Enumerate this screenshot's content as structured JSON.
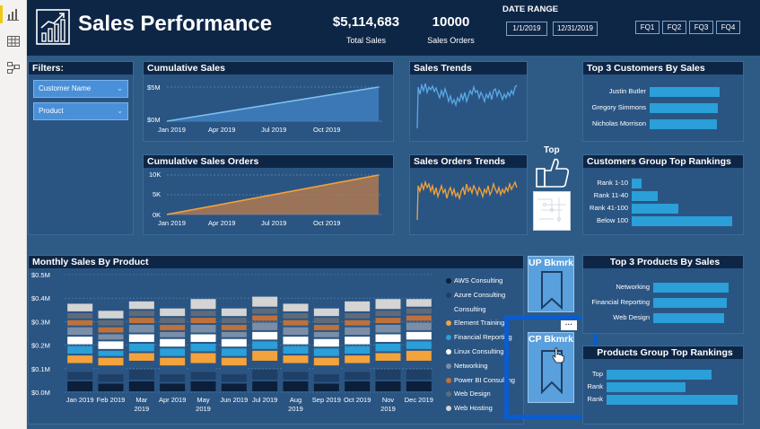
{
  "header": {
    "title": "Sales Performance",
    "kpi_sales_value": "$5,114,683",
    "kpi_sales_label": "Total Sales",
    "kpi_orders_value": "10000",
    "kpi_orders_label": "Sales Orders",
    "date_range_label": "DATE RANGE",
    "date_start": "1/1/2019",
    "date_end": "12/31/2019",
    "quarters": [
      "FQ1",
      "FQ2",
      "FQ3",
      "FQ4"
    ]
  },
  "filters": {
    "title": "Filters:",
    "slicers": [
      "Customer Name",
      "Product"
    ]
  },
  "cumulative_sales": {
    "title": "Cumulative Sales",
    "y_ticks": [
      "$5M",
      "$0M"
    ],
    "x_ticks": [
      "Jan 2019",
      "Apr 2019",
      "Jul 2019",
      "Oct 2019"
    ]
  },
  "cumulative_orders": {
    "title": "Cumulative Sales Orders",
    "y_ticks": [
      "10K",
      "5K",
      "0K"
    ],
    "x_ticks": [
      "Jan 2019",
      "Apr 2019",
      "Jul 2019",
      "Oct 2019"
    ]
  },
  "sales_trends": {
    "title": "Sales Trends"
  },
  "orders_trends": {
    "title": "Sales Orders Trends"
  },
  "top_toggle": {
    "label": "Top"
  },
  "top_customers": {
    "title": "Top 3 Customers By Sales",
    "items": [
      {
        "label": "Justin Butler",
        "value": 1.0
      },
      {
        "label": "Gregory Simmons",
        "value": 0.97
      },
      {
        "label": "Nicholas Morrison",
        "value": 0.96
      }
    ]
  },
  "customer_groups": {
    "title": "Customers Group Top Rankings",
    "items": [
      {
        "label": "Rank 1-10",
        "value": 0.1
      },
      {
        "label": "Rank 11-40",
        "value": 0.26
      },
      {
        "label": "Rank 41-100",
        "value": 0.46
      },
      {
        "label": "Below 100",
        "value": 1.0
      }
    ]
  },
  "monthly_sales": {
    "title": "Monthly Sales By Product",
    "y_ticks": [
      "$0.5M",
      "$0.4M",
      "$0.3M",
      "$0.2M",
      "$0.1M",
      "$0.0M"
    ],
    "months": [
      "Jan 2019",
      "Feb 2019",
      "Mar\n2019",
      "Apr 2019",
      "May\n2019",
      "Jun 2019",
      "Jul 2019",
      "Aug\n2019",
      "Sep 2019",
      "Oct 2019",
      "Nov\n2019",
      "Dec 2019"
    ],
    "legend": [
      {
        "name": "AWS Consulting",
        "color": "#0b1f3a"
      },
      {
        "name": "Azure Consulting",
        "color": "#1f3f66"
      },
      {
        "name": "Consulting",
        "color": "#2a5583"
      },
      {
        "name": "Element Training",
        "color": "#f4a23b"
      },
      {
        "name": "Financial Reporting",
        "color": "#2a9fd8"
      },
      {
        "name": "Linux Consulting",
        "color": "#ffffff"
      },
      {
        "name": "Networking",
        "color": "#7a8ea8"
      },
      {
        "name": "Power BI Consulting",
        "color": "#c0713a"
      },
      {
        "name": "Web Design",
        "color": "#5f6b7a"
      },
      {
        "name": "Web Hosting",
        "color": "#d4d4d4"
      }
    ]
  },
  "chart_data": {
    "type": "bar",
    "stacked": true,
    "title": "Monthly Sales By Product",
    "categories": [
      "Jan 2019",
      "Feb 2019",
      "Mar 2019",
      "Apr 2019",
      "May 2019",
      "Jun 2019",
      "Jul 2019",
      "Aug 2019",
      "Sep 2019",
      "Oct 2019",
      "Nov 2019",
      "Dec 2019"
    ],
    "ylim": [
      0,
      0.5
    ],
    "series": [
      {
        "name": "AWS Consulting",
        "values": [
          0.05,
          0.04,
          0.05,
          0.04,
          0.05,
          0.04,
          0.05,
          0.05,
          0.04,
          0.05,
          0.05,
          0.05
        ]
      },
      {
        "name": "Azure Consulting",
        "values": [
          0.04,
          0.04,
          0.05,
          0.04,
          0.04,
          0.04,
          0.05,
          0.04,
          0.04,
          0.04,
          0.05,
          0.05
        ]
      },
      {
        "name": "Consulting",
        "values": [
          0.03,
          0.03,
          0.03,
          0.03,
          0.03,
          0.03,
          0.03,
          0.03,
          0.03,
          0.03,
          0.03,
          0.03
        ]
      },
      {
        "name": "Element Training",
        "values": [
          0.04,
          0.04,
          0.04,
          0.04,
          0.05,
          0.04,
          0.05,
          0.04,
          0.04,
          0.04,
          0.04,
          0.05
        ]
      },
      {
        "name": "Financial Reporting",
        "values": [
          0.04,
          0.03,
          0.04,
          0.04,
          0.04,
          0.04,
          0.04,
          0.04,
          0.04,
          0.04,
          0.04,
          0.04
        ]
      },
      {
        "name": "Linux Consulting",
        "values": [
          0.04,
          0.04,
          0.04,
          0.04,
          0.04,
          0.04,
          0.04,
          0.04,
          0.04,
          0.04,
          0.04,
          0.04
        ]
      },
      {
        "name": "Networking",
        "values": [
          0.04,
          0.03,
          0.04,
          0.03,
          0.04,
          0.03,
          0.04,
          0.04,
          0.03,
          0.04,
          0.04,
          0.04
        ]
      },
      {
        "name": "Power BI Consulting",
        "values": [
          0.03,
          0.03,
          0.03,
          0.03,
          0.03,
          0.03,
          0.03,
          0.03,
          0.03,
          0.03,
          0.03,
          0.03
        ]
      },
      {
        "name": "Web Design",
        "values": [
          0.03,
          0.03,
          0.03,
          0.03,
          0.03,
          0.03,
          0.03,
          0.03,
          0.03,
          0.03,
          0.03,
          0.03
        ]
      },
      {
        "name": "Web Hosting",
        "values": [
          0.04,
          0.04,
          0.04,
          0.04,
          0.05,
          0.04,
          0.05,
          0.04,
          0.04,
          0.05,
          0.05,
          0.04
        ]
      }
    ]
  },
  "bookmarks": {
    "up_label": "UP Bkmrk",
    "cp_label": "CP Bkmrk",
    "more_label": "···"
  },
  "top_products": {
    "title": "Top 3 Products By Sales",
    "items": [
      {
        "label": "Networking",
        "value": 1.0
      },
      {
        "label": "Financial Reporting",
        "value": 0.98
      },
      {
        "label": "Web Design",
        "value": 0.94
      }
    ]
  },
  "product_groups": {
    "title": "Products Group Top Rankings",
    "items": [
      {
        "label": "Top",
        "value": 0.8
      },
      {
        "label": "Rank",
        "value": 0.6
      },
      {
        "label": "Rank",
        "value": 1.0
      }
    ]
  },
  "colors": {
    "canvas": "#2e5b86",
    "header": "#0e2646",
    "accent_blue": "#2a9fd8",
    "highlight_outline": "#0a5ccf",
    "orders_line": "#f4a23b",
    "sales_line": "#5aa9e6"
  }
}
